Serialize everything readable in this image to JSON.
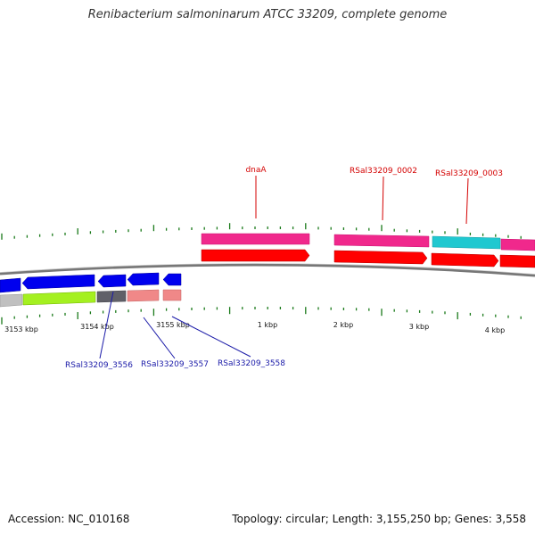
{
  "title": "Renibacterium salmoninarum ATCC 33209, complete genome",
  "footer": {
    "accession": "Accession: NC_010168",
    "summary": "Topology: circular; Length: 3,155,250 bp; Genes: 3,558"
  },
  "colors": {
    "backbone": "#808080",
    "forward_cds": "#ff0000",
    "reverse_cds": "#0000ee",
    "forward_label": "#d40000",
    "reverse_label": "#1a1aa8",
    "tick": "#1a7a1a"
  },
  "ticks": [
    {
      "label": "3153 kbp"
    },
    {
      "label": "3154 kbp"
    },
    {
      "label": "3155 kbp"
    },
    {
      "label": "1 kbp"
    },
    {
      "label": "2 kbp"
    },
    {
      "label": "3 kbp"
    },
    {
      "label": "4 kbp"
    }
  ],
  "gene_labels": {
    "forward": [
      "dnaA",
      "RSal33209_0002",
      "RSal33209_0003"
    ],
    "reverse": [
      "RSal33209_3556",
      "RSal33209_3557",
      "RSal33209_3558"
    ]
  }
}
